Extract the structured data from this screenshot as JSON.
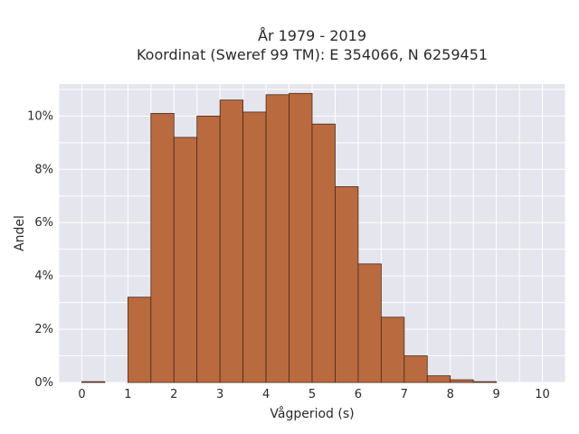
{
  "chart_data": {
    "type": "bar",
    "title": "År 1979 - 2019",
    "subtitle": "Koordinat (Sweref 99 TM): E 354066, N 6259451",
    "xlabel": "Vågperiod (s)",
    "ylabel": "Andel",
    "bin_width": 0.5,
    "bins_start": [
      0,
      0.5,
      1,
      1.5,
      2,
      2.5,
      3,
      3.5,
      4,
      4.5,
      5,
      5.5,
      6,
      6.5,
      7,
      7.5,
      8,
      8.5,
      9,
      9.5
    ],
    "values": [
      0.03,
      0,
      3.2,
      10.1,
      9.2,
      10.0,
      10.6,
      10.15,
      10.8,
      10.85,
      9.7,
      7.35,
      4.45,
      2.45,
      1.0,
      0.25,
      0.1,
      0.03,
      0,
      0
    ],
    "xlim": [
      -0.5,
      10.5
    ],
    "ylim": [
      0,
      11.2
    ],
    "x_ticks": [
      "0",
      "1",
      "2",
      "3",
      "4",
      "5",
      "6",
      "7",
      "8",
      "9",
      "10"
    ],
    "x_tick_values": [
      0,
      1,
      2,
      3,
      4,
      5,
      6,
      7,
      8,
      9,
      10
    ],
    "y_ticks": [
      "0%",
      "2%",
      "4%",
      "6%",
      "8%",
      "10%"
    ],
    "y_tick_values": [
      0,
      2,
      4,
      6,
      8,
      10
    ],
    "grid": true,
    "colors": {
      "bar_fill": "#b96a3f",
      "bar_stroke": "#4a2a18",
      "plot_bg": "#e5e5ee",
      "grid": "#ffffff"
    }
  }
}
